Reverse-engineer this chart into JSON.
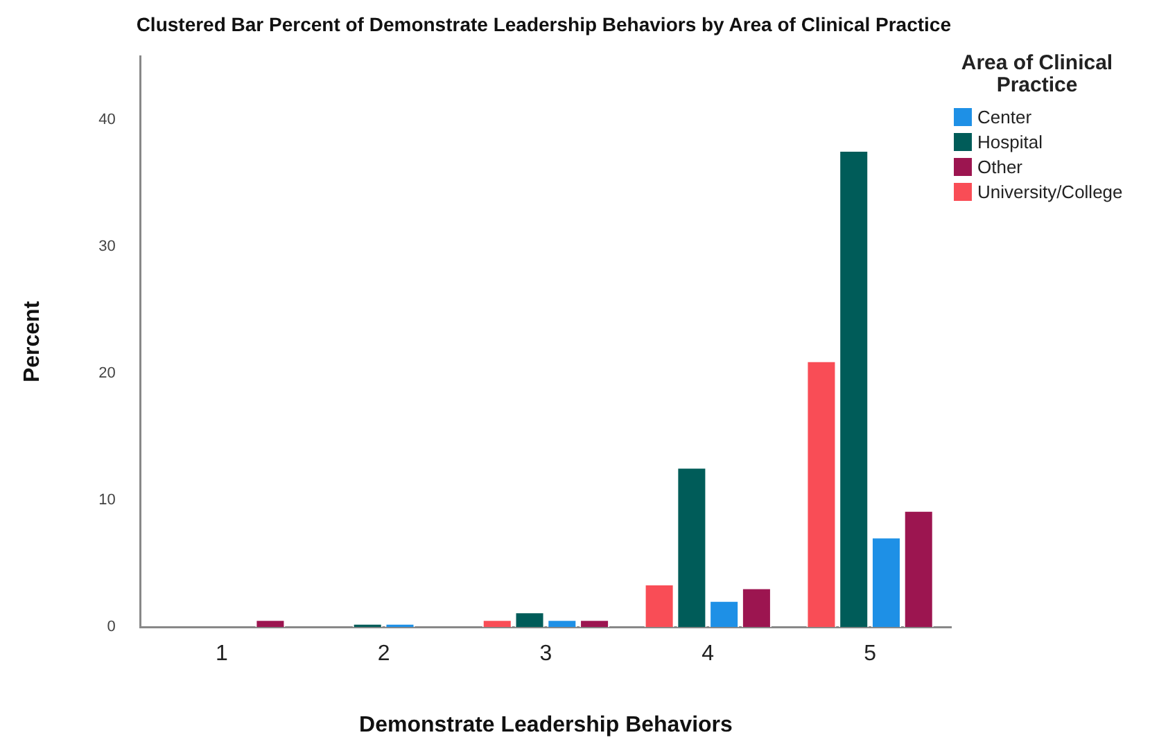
{
  "chart_data": {
    "type": "bar",
    "title": "Clustered Bar Percent of Demonstrate Leadership Behaviors by Area of Clinical Practice",
    "xlabel": "Demonstrate Leadership Behaviors",
    "ylabel": "Percent",
    "legend_title": "Area of Clinical Practice",
    "categories": [
      "1",
      "2",
      "3",
      "4",
      "5"
    ],
    "series": [
      {
        "name": "University/College",
        "color": "#f94d56",
        "values": [
          null,
          null,
          0.6,
          3.4,
          21.0
        ]
      },
      {
        "name": "Hospital",
        "color": "#005c59",
        "values": [
          null,
          0.3,
          1.2,
          12.6,
          37.6
        ]
      },
      {
        "name": "Center",
        "color": "#1e90e6",
        "values": [
          null,
          0.3,
          0.6,
          2.1,
          7.1
        ]
      },
      {
        "name": "Other",
        "color": "#9c1550",
        "values": [
          0.6,
          null,
          0.6,
          3.1,
          9.2
        ]
      }
    ],
    "ylim": [
      0,
      45
    ],
    "yticks": [
      0,
      10,
      20,
      30,
      40
    ],
    "grid": false,
    "legend": "top right"
  }
}
